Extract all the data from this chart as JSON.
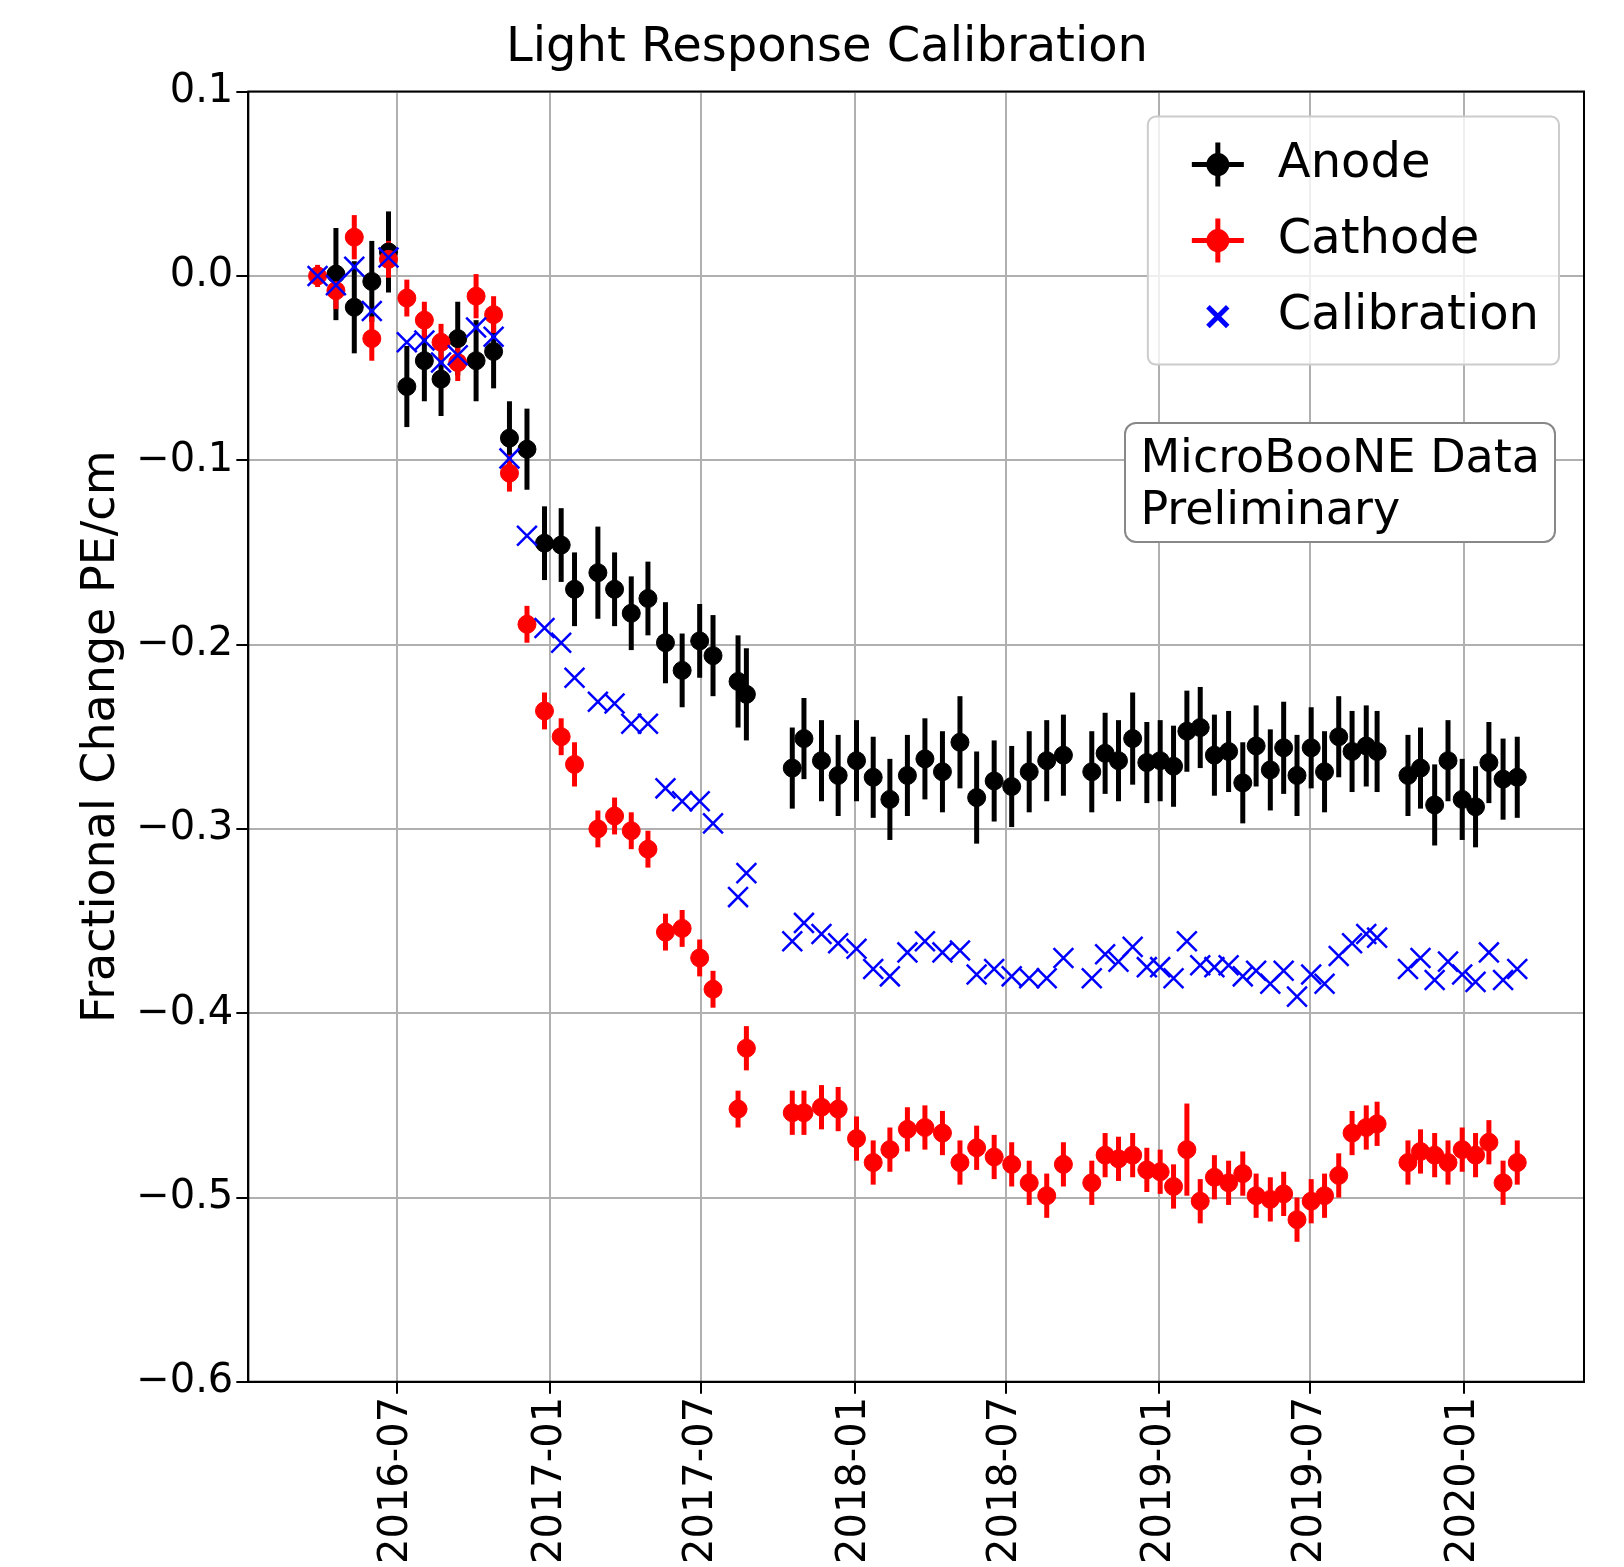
{
  "chart_data": {
    "type": "scatter",
    "title": "Light Response Calibration",
    "ylabel": "Fractional Change PE/cm",
    "x": [
      "2016-03-28",
      "2016-04-19",
      "2016-05-11",
      "2016-06-01",
      "2016-06-21",
      "2016-07-13",
      "2016-08-03",
      "2016-08-23",
      "2016-09-12",
      "2016-10-04",
      "2016-10-25",
      "2016-11-13",
      "2016-12-04",
      "2016-12-25",
      "2017-01-14",
      "2017-01-30",
      "2017-02-27",
      "2017-03-19",
      "2017-04-08",
      "2017-04-28",
      "2017-05-19",
      "2017-06-08",
      "2017-06-29",
      "2017-07-15",
      "2017-08-14",
      "2017-08-24",
      "2017-10-18",
      "2017-11-01",
      "2017-11-22",
      "2017-12-12",
      "2018-01-03",
      "2018-01-23",
      "2018-02-12",
      "2018-03-05",
      "2018-03-26",
      "2018-04-16",
      "2018-05-07",
      "2018-05-27",
      "2018-06-17",
      "2018-07-08",
      "2018-07-29",
      "2018-08-19",
      "2018-09-08",
      "2018-10-12",
      "2018-10-28",
      "2018-11-13",
      "2018-11-30",
      "2018-12-17",
      "2019-01-02",
      "2019-01-18",
      "2019-02-03",
      "2019-02-19",
      "2019-03-08",
      "2019-03-25",
      "2019-04-11",
      "2019-04-27",
      "2019-05-14",
      "2019-05-30",
      "2019-06-15",
      "2019-07-02",
      "2019-07-18",
      "2019-08-04",
      "2019-08-20",
      "2019-09-06",
      "2019-09-19",
      "2019-10-26",
      "2019-11-10",
      "2019-11-27",
      "2019-12-13",
      "2019-12-30",
      "2020-01-15",
      "2020-01-31",
      "2020-02-17",
      "2020-03-05"
    ],
    "series": [
      {
        "name": "Anode",
        "color": "#000000",
        "marker": "circle",
        "values": [
          null,
          0.001,
          -0.017,
          -0.003,
          0.013,
          -0.06,
          -0.046,
          -0.056,
          -0.034,
          -0.046,
          -0.041,
          -0.088,
          -0.094,
          -0.145,
          -0.146,
          -0.17,
          -0.161,
          -0.17,
          -0.183,
          -0.175,
          -0.199,
          -0.214,
          -0.198,
          -0.206,
          -0.22,
          -0.227,
          -0.267,
          -0.251,
          -0.263,
          -0.271,
          -0.263,
          -0.272,
          -0.284,
          -0.271,
          -0.262,
          -0.269,
          -0.253,
          -0.283,
          -0.274,
          -0.277,
          -0.269,
          -0.263,
          -0.26,
          -0.269,
          -0.259,
          -0.263,
          -0.251,
          -0.264,
          -0.263,
          -0.266,
          -0.247,
          -0.245,
          -0.26,
          -0.258,
          -0.275,
          -0.255,
          -0.268,
          -0.256,
          -0.271,
          -0.256,
          -0.269,
          -0.25,
          -0.258,
          -0.255,
          -0.258,
          -0.271,
          -0.267,
          -0.287,
          -0.263,
          -0.284,
          -0.288,
          -0.264,
          -0.273,
          -0.272
        ],
        "errors": [
          null,
          0.025,
          0.025,
          0.022,
          0.022,
          0.022,
          0.022,
          0.02,
          0.02,
          0.022,
          0.02,
          0.02,
          0.022,
          0.02,
          0.02,
          0.02,
          0.025,
          0.02,
          0.02,
          0.02,
          0.022,
          0.02,
          0.02,
          0.022,
          0.025,
          0.025,
          0.022,
          0.022,
          0.022,
          0.022,
          0.022,
          0.022,
          0.022,
          0.022,
          0.022,
          0.022,
          0.025,
          0.025,
          0.022,
          0.022,
          0.022,
          0.022,
          0.022,
          0.022,
          0.022,
          0.022,
          0.025,
          0.022,
          0.022,
          0.022,
          0.022,
          0.022,
          0.022,
          0.022,
          0.022,
          0.022,
          0.022,
          0.025,
          0.022,
          0.022,
          0.022,
          0.022,
          0.022,
          0.022,
          0.022,
          0.022,
          0.022,
          0.022,
          0.022,
          0.022,
          0.022,
          0.022,
          0.022,
          0.022
        ]
      },
      {
        "name": "Cathode",
        "color": "#ff0000",
        "marker": "circle",
        "values": [
          0.0,
          -0.008,
          0.021,
          -0.034,
          0.009,
          -0.012,
          -0.024,
          -0.036,
          -0.047,
          -0.011,
          -0.021,
          -0.107,
          -0.189,
          -0.236,
          -0.25,
          -0.265,
          -0.3,
          -0.293,
          -0.301,
          -0.311,
          -0.356,
          -0.354,
          -0.37,
          -0.387,
          -0.452,
          -0.419,
          -0.454,
          -0.454,
          -0.451,
          -0.452,
          -0.468,
          -0.481,
          -0.474,
          -0.463,
          -0.462,
          -0.465,
          -0.481,
          -0.473,
          -0.478,
          -0.482,
          -0.492,
          -0.499,
          -0.482,
          -0.492,
          -0.477,
          -0.479,
          -0.477,
          -0.485,
          -0.486,
          -0.494,
          -0.474,
          -0.502,
          -0.489,
          -0.492,
          -0.487,
          -0.499,
          -0.501,
          -0.498,
          -0.512,
          -0.502,
          -0.499,
          -0.488,
          -0.465,
          -0.462,
          -0.46,
          -0.481,
          -0.475,
          -0.477,
          -0.481,
          -0.474,
          -0.477,
          -0.47,
          -0.492,
          -0.481
        ],
        "errors": [
          0.006,
          0.01,
          0.012,
          0.012,
          0.01,
          0.01,
          0.01,
          0.01,
          0.01,
          0.012,
          0.01,
          0.01,
          0.01,
          0.01,
          0.01,
          0.012,
          0.01,
          0.01,
          0.01,
          0.01,
          0.01,
          0.01,
          0.01,
          0.01,
          0.01,
          0.012,
          0.012,
          0.012,
          0.012,
          0.012,
          0.012,
          0.012,
          0.012,
          0.012,
          0.012,
          0.012,
          0.012,
          0.012,
          0.012,
          0.012,
          0.012,
          0.012,
          0.012,
          0.012,
          0.012,
          0.012,
          0.012,
          0.012,
          0.012,
          0.012,
          0.025,
          0.012,
          0.012,
          0.012,
          0.012,
          0.012,
          0.012,
          0.012,
          0.012,
          0.012,
          0.012,
          0.012,
          0.012,
          0.012,
          0.012,
          0.012,
          0.012,
          0.012,
          0.012,
          0.012,
          0.012,
          0.012,
          0.012,
          0.012
        ]
      },
      {
        "name": "Calibration",
        "color": "#0000ff",
        "marker": "cross",
        "values": [
          0.0,
          -0.005,
          0.005,
          -0.019,
          0.01,
          -0.036,
          -0.035,
          -0.047,
          -0.043,
          -0.028,
          -0.033,
          -0.099,
          -0.141,
          -0.191,
          -0.199,
          -0.218,
          -0.231,
          -0.232,
          -0.243,
          -0.243,
          -0.278,
          -0.285,
          -0.285,
          -0.297,
          -0.337,
          -0.324,
          -0.361,
          -0.351,
          -0.357,
          -0.362,
          -0.365,
          -0.376,
          -0.38,
          -0.367,
          -0.361,
          -0.367,
          -0.366,
          -0.379,
          -0.376,
          -0.38,
          -0.381,
          -0.381,
          -0.37,
          -0.381,
          -0.368,
          -0.372,
          -0.364,
          -0.375,
          -0.375,
          -0.381,
          -0.361,
          -0.374,
          -0.375,
          -0.374,
          -0.38,
          -0.377,
          -0.384,
          -0.377,
          -0.391,
          -0.379,
          -0.384,
          -0.369,
          -0.362,
          -0.357,
          -0.359,
          -0.376,
          -0.37,
          -0.382,
          -0.372,
          -0.379,
          -0.383,
          -0.367,
          -0.382,
          -0.376
        ]
      }
    ],
    "xlim": [
      "2016-01-05",
      "2020-05-24"
    ],
    "xticks": [
      "2016-07",
      "2017-01",
      "2017-07",
      "2018-01",
      "2018-07",
      "2019-01",
      "2019-07",
      "2020-01"
    ],
    "ylim": [
      -0.6,
      0.1
    ],
    "yticks": [
      {
        "value": -0.6,
        "label": "−0.6"
      },
      {
        "value": -0.5,
        "label": "−0.5"
      },
      {
        "value": -0.4,
        "label": "−0.4"
      },
      {
        "value": -0.3,
        "label": "−0.3"
      },
      {
        "value": -0.2,
        "label": "−0.2"
      },
      {
        "value": -0.1,
        "label": "−0.1"
      },
      {
        "value": 0,
        "label": "0.0"
      },
      {
        "value": 0.1,
        "label": "0.1"
      }
    ],
    "grid": true,
    "legend": "top right",
    "annotations": [
      "MicroBooNE Data\nPreliminary"
    ]
  }
}
